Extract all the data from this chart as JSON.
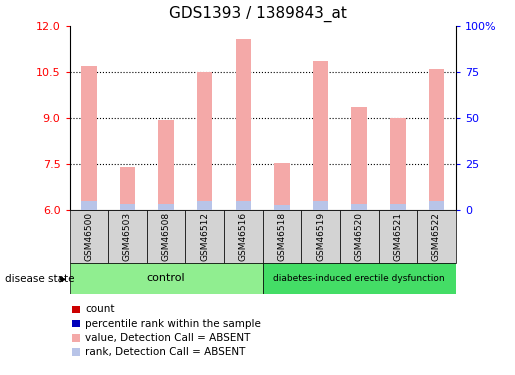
{
  "title": "GDS1393 / 1389843_at",
  "samples": [
    "GSM46500",
    "GSM46503",
    "GSM46508",
    "GSM46512",
    "GSM46516",
    "GSM46518",
    "GSM46519",
    "GSM46520",
    "GSM46521",
    "GSM46522"
  ],
  "values": [
    10.7,
    7.4,
    8.95,
    10.5,
    11.6,
    7.55,
    10.85,
    9.35,
    9.0,
    10.6
  ],
  "ranks": [
    6.3,
    6.2,
    6.2,
    6.3,
    6.3,
    6.15,
    6.3,
    6.2,
    6.2,
    6.3
  ],
  "ylim_left": [
    6,
    12
  ],
  "ylim_right": [
    0,
    100
  ],
  "yticks_left": [
    6,
    7.5,
    9,
    10.5,
    12
  ],
  "yticks_right": [
    0,
    25,
    50,
    75,
    100
  ],
  "ytick_labels_right": [
    "0",
    "25",
    "50",
    "75",
    "100%"
  ],
  "bar_color_value": "#F4A9A8",
  "bar_color_rank": "#B8C4E8",
  "group1_label": "control",
  "group2_label": "diabetes-induced erectile dysfunction",
  "group1_indices": [
    0,
    1,
    2,
    3,
    4
  ],
  "group2_indices": [
    5,
    6,
    7,
    8,
    9
  ],
  "group1_color": "#90EE90",
  "group2_color": "#44DD66",
  "disease_state_label": "disease state",
  "legend_items": [
    {
      "color": "#CC0000",
      "label": "count"
    },
    {
      "color": "#0000BB",
      "label": "percentile rank within the sample"
    },
    {
      "color": "#F4A9A8",
      "label": "value, Detection Call = ABSENT"
    },
    {
      "color": "#B8C4E8",
      "label": "rank, Detection Call = ABSENT"
    }
  ],
  "bar_width": 0.4,
  "base_value": 6.0,
  "title_fontsize": 11,
  "tick_fontsize": 8,
  "label_fontsize": 6.5,
  "legend_fontsize": 7.5
}
